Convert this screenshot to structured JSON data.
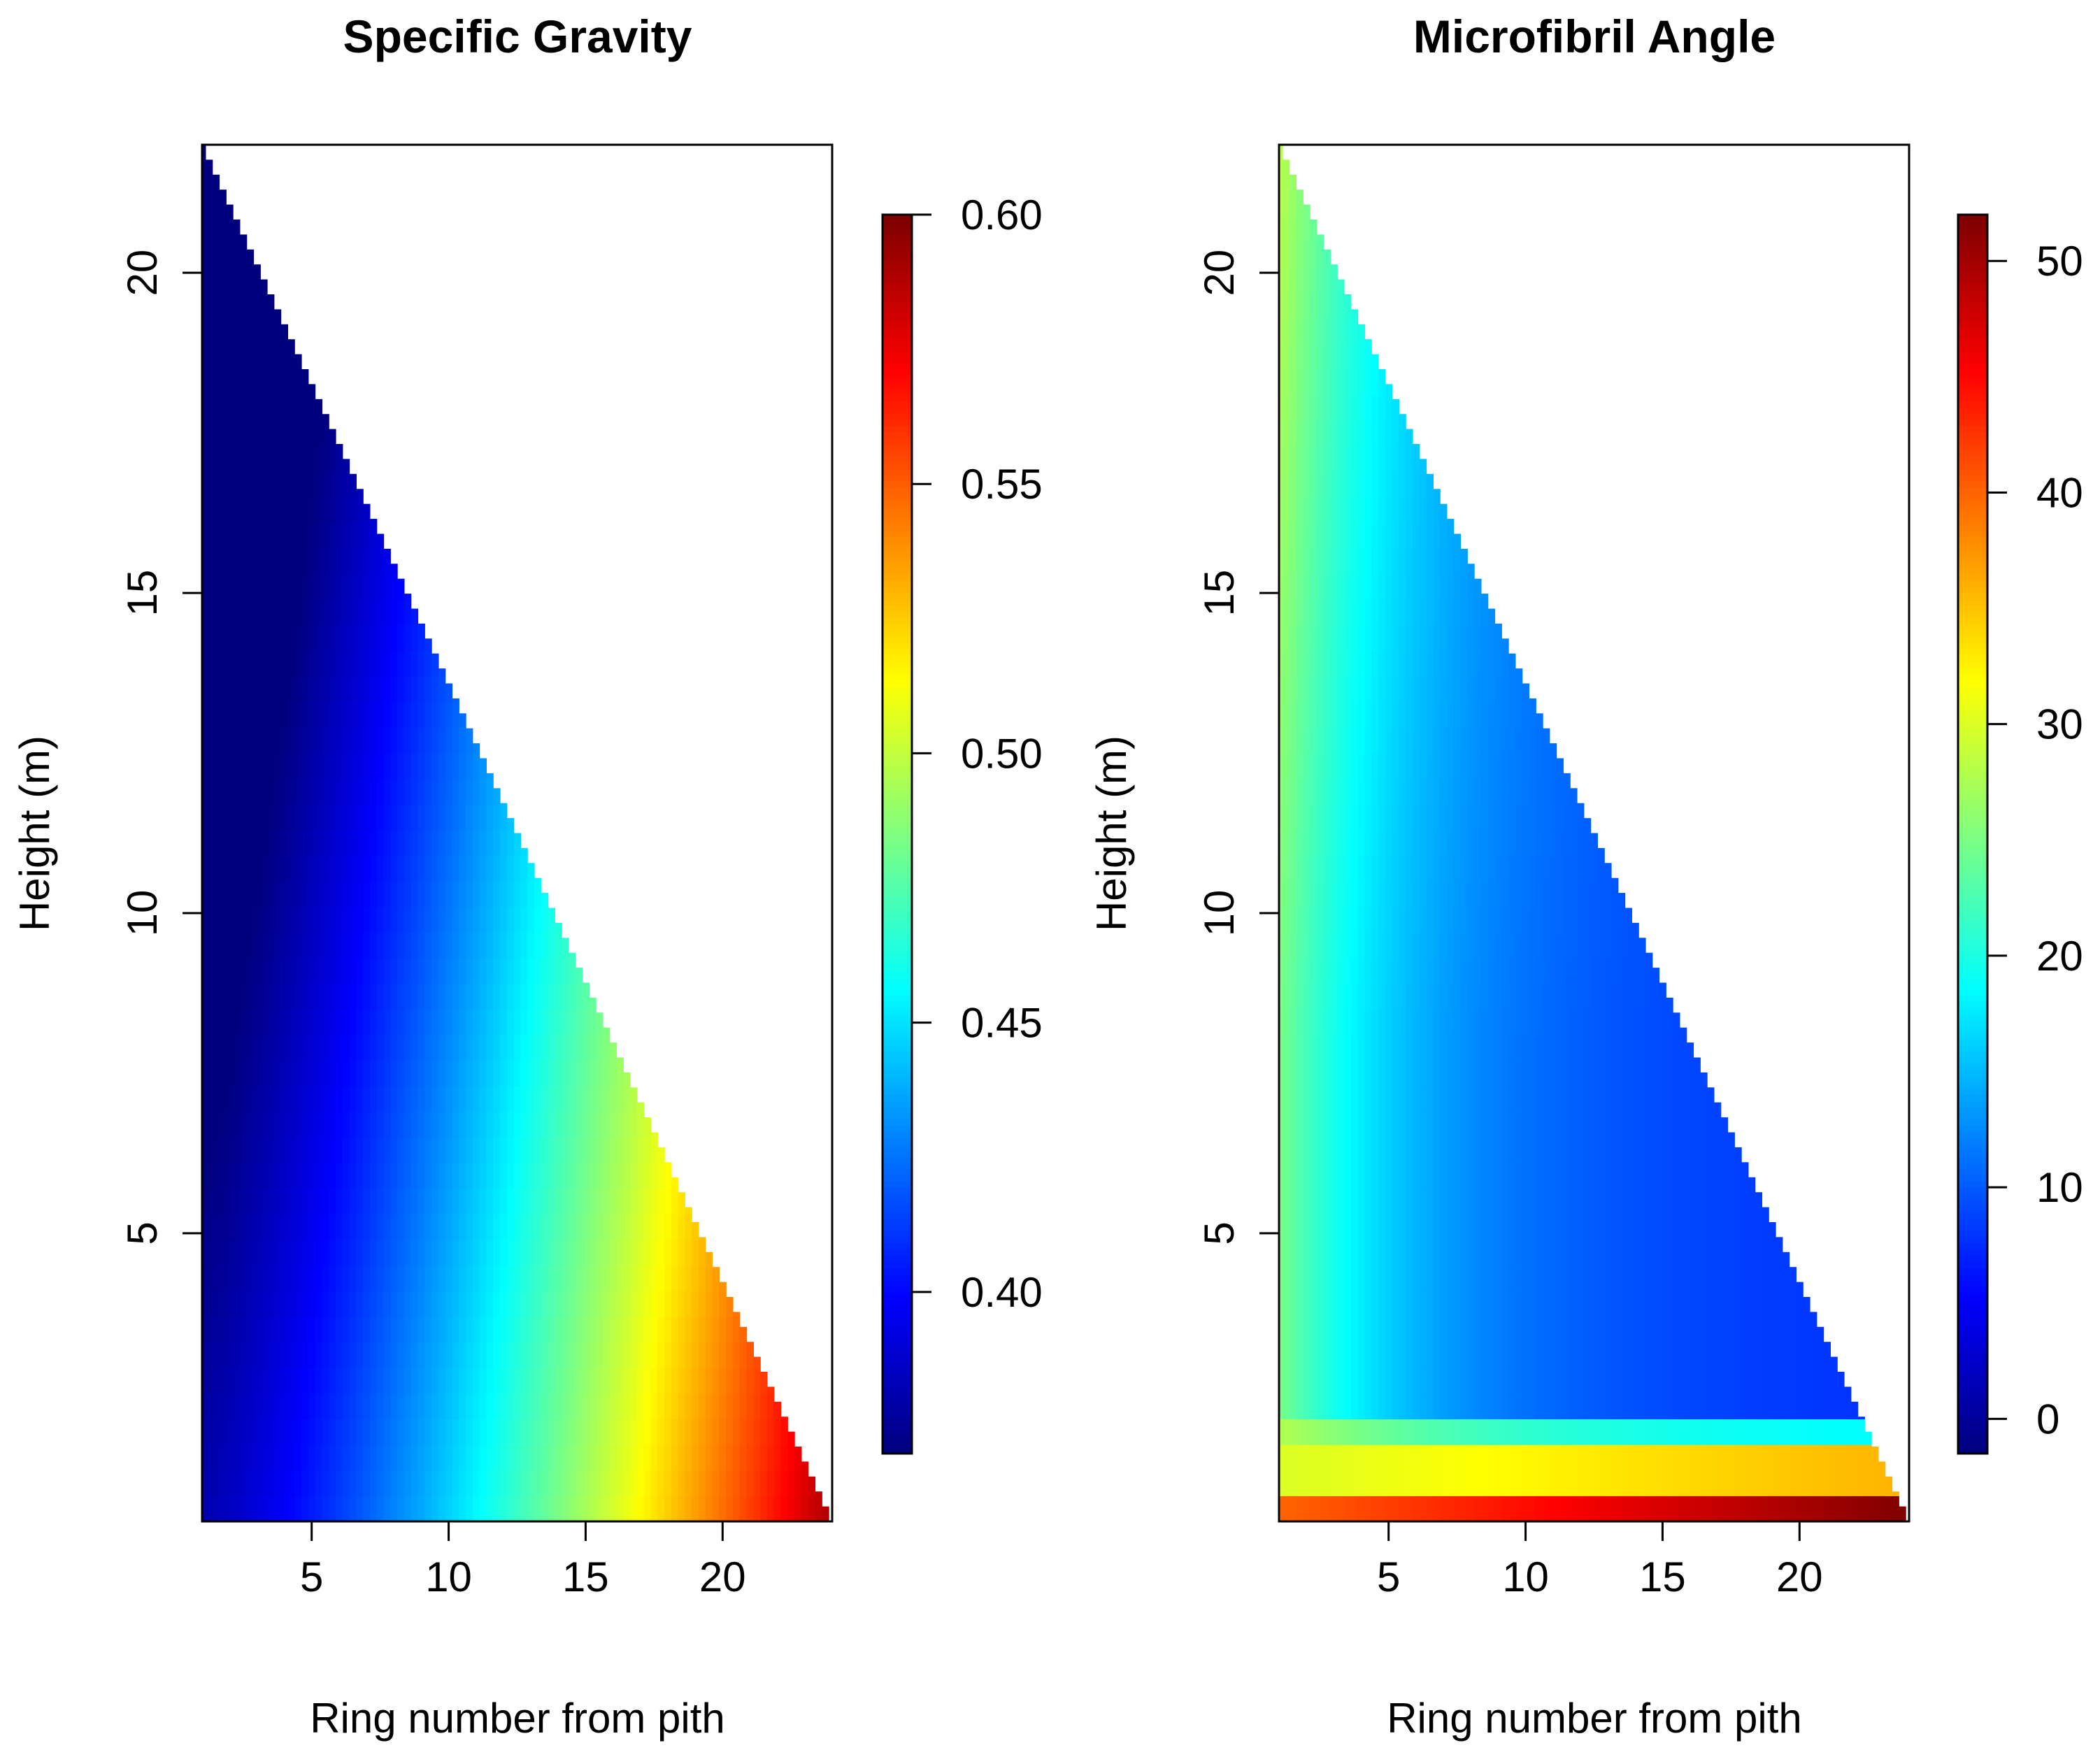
{
  "chart_data": [
    {
      "type": "heatmap",
      "title": "Specific Gravity",
      "xlabel": "Ring number from pith",
      "ylabel": "Height (m)",
      "xlim": [
        1,
        24
      ],
      "ylim": [
        0.5,
        22
      ],
      "xticks": [
        5,
        10,
        15,
        20
      ],
      "yticks": [
        5,
        10,
        15,
        20
      ],
      "colorbar": {
        "range": [
          0.37,
          0.6
        ],
        "ticks": [
          0.4,
          0.45,
          0.5,
          0.55,
          0.6
        ],
        "tick_labels": [
          "0.40",
          "0.45",
          "0.50",
          "0.55",
          "0.60"
        ]
      },
      "colormap": [
        "#00007f",
        "#0000ff",
        "#007fff",
        "#00ffff",
        "#7fff7f",
        "#ffff00",
        "#ff7f00",
        "#ff0000",
        "#7f0000"
      ],
      "max_ring_at_base": 24,
      "max_height_at_pith": 22,
      "notes": "Pith rings ~0.38 rising to ~0.60 at outer rings near base; values decrease with height"
    },
    {
      "type": "heatmap",
      "title": "Microfibril Angle",
      "xlabel": "Ring number from pith",
      "ylabel": "Height (m)",
      "xlim": [
        1,
        24
      ],
      "ylim": [
        0.5,
        22
      ],
      "xticks": [
        5,
        10,
        15,
        20
      ],
      "yticks": [
        5,
        10,
        15,
        20
      ],
      "colorbar": {
        "range": [
          -1.5,
          52
        ],
        "ticks": [
          0,
          10,
          20,
          30,
          40,
          50
        ],
        "tick_labels": [
          "0",
          "10",
          "20",
          "30",
          "40",
          "50"
        ]
      },
      "colormap": [
        "#00007f",
        "#0000ff",
        "#007fff",
        "#00ffff",
        "#7fff7f",
        "#ffff00",
        "#ff7f00",
        "#ff0000",
        "#7f0000"
      ],
      "max_ring_at_base": 24,
      "max_height_at_pith": 22,
      "notes": "Pith rings ~18-27 degrees declining to ~8-10 outward; very high (30-50) in lowest band near ground"
    }
  ]
}
